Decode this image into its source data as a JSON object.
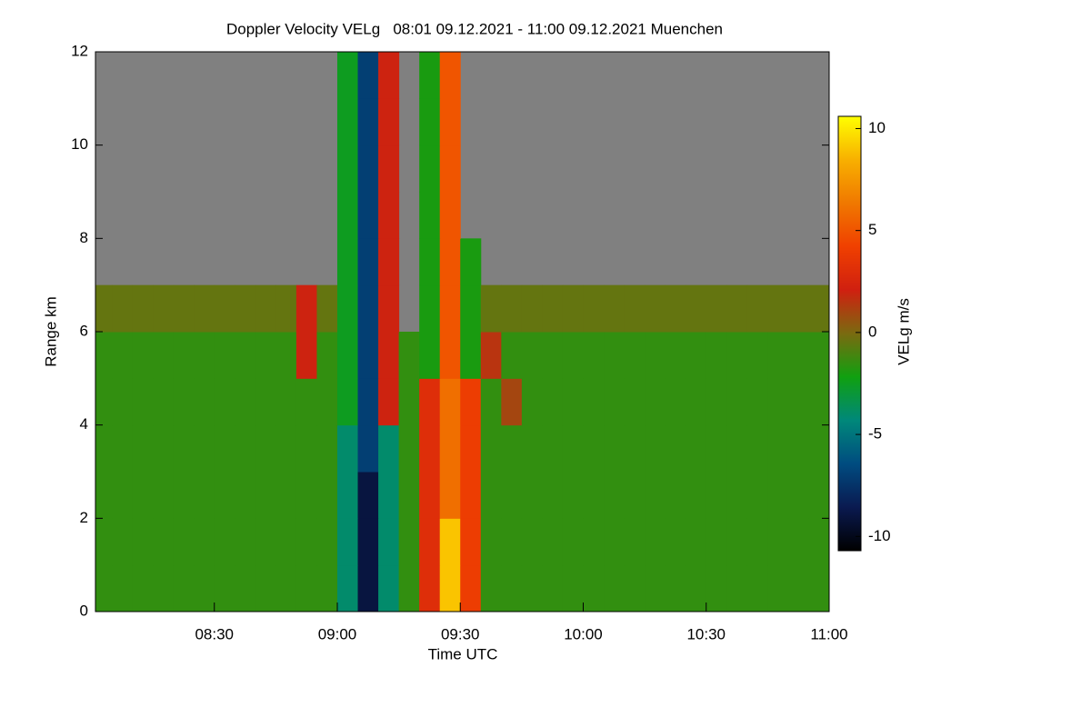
{
  "chart_data": {
    "type": "heatmap",
    "title": "Doppler Velocity VELg   08:01 09.12.2021 - 11:00 09.12.2021 Muenchen",
    "x_label": "Time UTC",
    "y_label": "Range km",
    "colorbar_label": "VELg m/s",
    "x_edges": [
      8.0,
      8.0833,
      8.1667,
      8.25,
      8.3333,
      8.4167,
      8.5,
      8.5833,
      8.6667,
      8.75,
      8.8333,
      8.9167,
      9.0,
      9.0833,
      9.1667,
      9.25,
      9.3333,
      9.4167,
      9.5,
      9.5833,
      9.6667,
      9.75,
      9.8333,
      9.9167,
      10.0,
      10.0833,
      10.1667,
      10.25,
      10.3333,
      10.4167,
      10.5,
      10.5833,
      10.6667,
      10.75,
      10.8333,
      10.9167,
      11.0
    ],
    "y_edges": [
      0,
      1,
      2,
      3,
      4,
      5,
      6,
      7,
      8,
      9,
      10,
      11,
      12
    ],
    "z": [
      [
        -1.5,
        -1.5,
        -1.5,
        -1.5,
        -1.5,
        -1.5,
        -1.5,
        -1.5,
        -1.5,
        -1.5,
        -1.5,
        -1.5,
        -4,
        -9,
        -4,
        -1.5,
        3,
        9,
        4,
        -1.5,
        -1.5,
        -1.5,
        -1.5,
        -1.5,
        -1.5,
        -1.5,
        -1.5,
        -1.5,
        -1.5,
        -1.5,
        -1.5,
        -1.5,
        -1.5,
        -1.5,
        -1.5,
        -1.5
      ],
      [
        -1.5,
        -1.5,
        -1.5,
        -1.5,
        -1.5,
        -1.5,
        -1.5,
        -1.5,
        -1.5,
        -1.5,
        -1.5,
        -1.5,
        -4,
        -9,
        -4,
        -1.5,
        3,
        9,
        4,
        -1.5,
        -1.5,
        -1.5,
        -1.5,
        -1.5,
        -1.5,
        -1.5,
        -1.5,
        -1.5,
        -1.5,
        -1.5,
        -1.5,
        -1.5,
        -1.5,
        -1.5,
        -1.5,
        -1.5
      ],
      [
        -1.5,
        -1.5,
        -1.5,
        -1.5,
        -1.5,
        -1.5,
        -1.5,
        -1.5,
        -1.5,
        -1.5,
        -1.5,
        -1.5,
        -4,
        -9,
        -4,
        -1.5,
        3,
        6,
        4,
        -1.5,
        -1.5,
        -1.5,
        -1.5,
        -1.5,
        -1.5,
        -1.5,
        -1.5,
        -1.5,
        -1.5,
        -1.5,
        -1.5,
        -1.5,
        -1.5,
        -1.5,
        -1.5,
        -1.5
      ],
      [
        -1.5,
        -1.5,
        -1.5,
        -1.5,
        -1.5,
        -1.5,
        -1.5,
        -1.5,
        -1.5,
        -1.5,
        -1.5,
        -1.5,
        -4,
        -7,
        -4,
        -1.5,
        3,
        6,
        4,
        -1.5,
        -1.5,
        -1.5,
        -1.5,
        -1.5,
        -1.5,
        -1.5,
        -1.5,
        -1.5,
        -1.5,
        -1.5,
        -1.5,
        -1.5,
        -1.5,
        -1.5,
        -1.5,
        -1.5
      ],
      [
        -1.5,
        -1.5,
        -1.5,
        -1.5,
        -1.5,
        -1.5,
        -1.5,
        -1.5,
        -1.5,
        -1.5,
        -1.5,
        -1.5,
        -2.5,
        -7,
        2,
        -1.5,
        3,
        6,
        4,
        -1.5,
        1,
        -1.5,
        -1.5,
        -1.5,
        -1.5,
        -1.5,
        -1.5,
        -1.5,
        -1.5,
        -1.5,
        -1.5,
        -1.5,
        -1.5,
        -1.5,
        -1.5,
        -1.5
      ],
      [
        -1.5,
        -1.5,
        -1.5,
        -1.5,
        -1.5,
        -1.5,
        -1.5,
        -1.5,
        -1.5,
        -1.5,
        2,
        -1.5,
        -2.5,
        -7,
        2,
        -1.5,
        -2,
        5,
        -2,
        1.5,
        -1.5,
        -1.5,
        -1.5,
        -1.5,
        -1.5,
        -1.5,
        -1.5,
        -1.5,
        -1.5,
        -1.5,
        -1.5,
        -1.5,
        -1.5,
        -1.5,
        -1.5,
        -1.5
      ],
      [
        -0.5,
        -0.5,
        -0.5,
        -0.5,
        -0.5,
        -0.5,
        -0.5,
        -0.5,
        -0.5,
        -0.5,
        2,
        -0.5,
        -2.5,
        -7,
        2,
        null,
        -2,
        5,
        -2,
        -0.5,
        -0.5,
        -0.5,
        -0.5,
        -0.5,
        -0.5,
        -0.5,
        -0.5,
        -0.5,
        -0.5,
        -0.5,
        -0.5,
        -0.5,
        -0.5,
        -0.5,
        -0.5,
        -0.5
      ],
      [
        null,
        null,
        null,
        null,
        null,
        null,
        null,
        null,
        null,
        null,
        null,
        null,
        -2.5,
        -7,
        2,
        null,
        -2,
        5,
        -2,
        null,
        null,
        null,
        null,
        null,
        null,
        null,
        null,
        null,
        null,
        null,
        null,
        null,
        null,
        null,
        null,
        null
      ],
      [
        null,
        null,
        null,
        null,
        null,
        null,
        null,
        null,
        null,
        null,
        null,
        null,
        -2.5,
        -7,
        2,
        null,
        -2,
        5,
        null,
        null,
        null,
        null,
        null,
        null,
        null,
        null,
        null,
        null,
        null,
        null,
        null,
        null,
        null,
        null,
        null,
        null
      ],
      [
        null,
        null,
        null,
        null,
        null,
        null,
        null,
        null,
        null,
        null,
        null,
        null,
        -2.5,
        -7,
        2,
        null,
        -2,
        5,
        null,
        null,
        null,
        null,
        null,
        null,
        null,
        null,
        null,
        null,
        null,
        null,
        null,
        null,
        null,
        null,
        null,
        null
      ],
      [
        null,
        null,
        null,
        null,
        null,
        null,
        null,
        null,
        null,
        null,
        null,
        null,
        -2.5,
        -7,
        2,
        null,
        -2,
        5,
        null,
        null,
        null,
        null,
        null,
        null,
        null,
        null,
        null,
        null,
        null,
        null,
        null,
        null,
        null,
        null,
        null,
        null
      ],
      [
        null,
        null,
        null,
        null,
        null,
        null,
        null,
        null,
        null,
        null,
        null,
        null,
        -2.5,
        -7,
        2,
        null,
        -2,
        5,
        null,
        null,
        null,
        null,
        null,
        null,
        null,
        null,
        null,
        null,
        null,
        null,
        null,
        null,
        null,
        null,
        null,
        null
      ]
    ],
    "xlim": [
      8.0167,
      11.0
    ],
    "xticks": [
      {
        "value": 8.5,
        "label": "08:30"
      },
      {
        "value": 9,
        "label": "09:00"
      },
      {
        "value": 9.5,
        "label": "09:30"
      },
      {
        "value": 10,
        "label": "10:00"
      },
      {
        "value": 10.5,
        "label": "10:30"
      },
      {
        "value": 11,
        "label": "11:00"
      }
    ],
    "ylim": [
      0,
      12
    ],
    "yticks": [
      0,
      2,
      4,
      6,
      8,
      10,
      12
    ],
    "zlim": [
      -10.7,
      10.6
    ],
    "zticks": [
      -10,
      -5,
      0,
      5,
      10
    ],
    "colorscale": [
      "#000000",
      "#0a1a50",
      "#004c80",
      "#00887a",
      "#10a010",
      "#7a6a10",
      "#d02010",
      "#f04000",
      "#f07800",
      "#f8b000",
      "#ffff00"
    ],
    "null_color": "#808080"
  }
}
